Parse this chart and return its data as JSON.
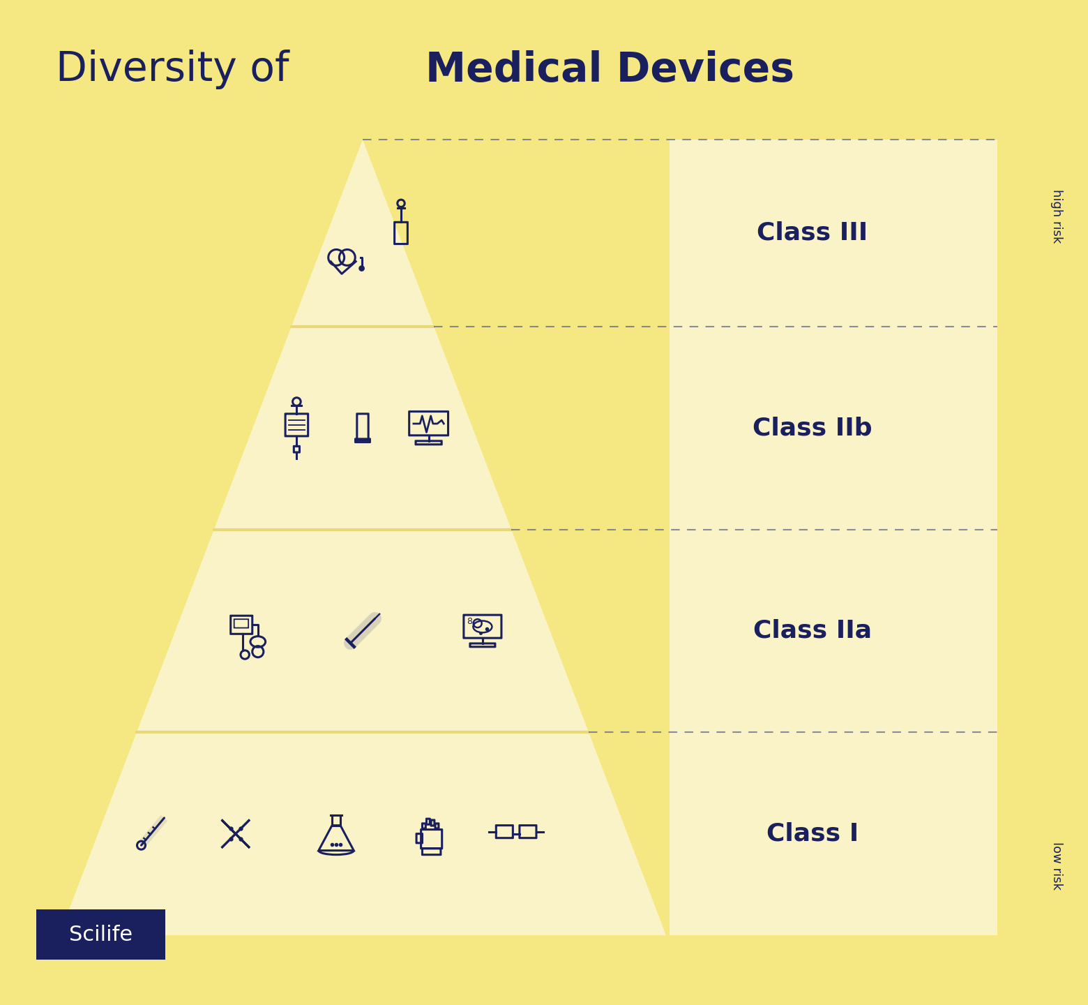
{
  "bg_color": "#F5E882",
  "panel_color": "#FAF3C8",
  "dark_color": "#1a1f5e",
  "divider_color": "#E8D87A",
  "dashed_color": "#5a6080",
  "title_regular": "Diversity of ",
  "title_bold": "Medical Devices",
  "title_fontsize": 42,
  "classes": [
    "Class III",
    "Class IIb",
    "Class IIa",
    "Class I"
  ],
  "class_fontsize": 26,
  "arrow_label_top": "high risk",
  "arrow_label_bottom": "low risk",
  "scilife_bg": "#1a1f5e",
  "scilife_text": "Scilife",
  "arrow_color": "#F5E882"
}
